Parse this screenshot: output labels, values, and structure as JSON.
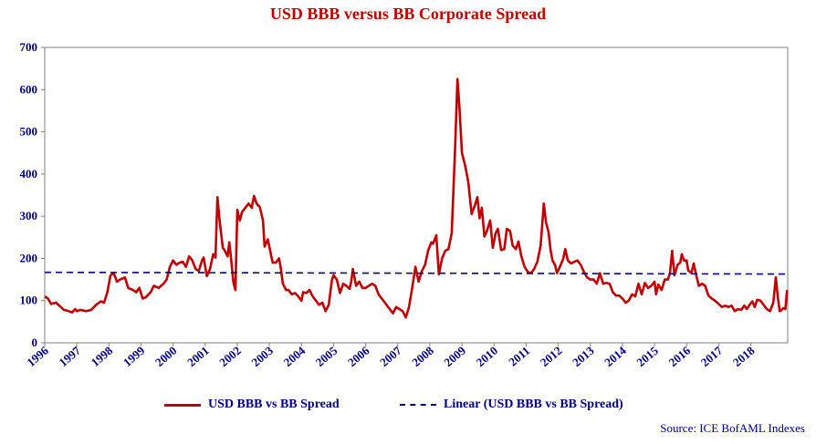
{
  "chart_data": {
    "type": "line",
    "title": "USD BBB versus BB Corporate Spread",
    "xlabel": "",
    "ylabel": "",
    "ylim": [
      0,
      700
    ],
    "xlim": [
      1996.0,
      2018.5
    ],
    "y_ticks": [
      "0",
      "100",
      "200",
      "300",
      "400",
      "500",
      "600",
      "700"
    ],
    "x_ticks": [
      "1996",
      "1997",
      "1998",
      "1999",
      "2000",
      "2001",
      "2002",
      "2003",
      "2004",
      "2005",
      "2006",
      "2007",
      "2008",
      "2009",
      "2010",
      "2011",
      "2012",
      "2013",
      "2014",
      "2015",
      "2016",
      "2017",
      "2018"
    ],
    "grid": false,
    "legend_position": "bottom",
    "series": [
      {
        "name": "USD BBB vs BB Spread",
        "color": "#c00000",
        "style": "solid",
        "points": [
          [
            1996.0,
            110
          ],
          [
            1996.1,
            105
          ],
          [
            1996.2,
            92
          ],
          [
            1996.35,
            95
          ],
          [
            1996.5,
            85
          ],
          [
            1996.6,
            78
          ],
          [
            1996.75,
            75
          ],
          [
            1996.85,
            72
          ],
          [
            1996.95,
            80
          ],
          [
            1997.0,
            75
          ],
          [
            1997.1,
            78
          ],
          [
            1997.3,
            75
          ],
          [
            1997.45,
            78
          ],
          [
            1997.6,
            90
          ],
          [
            1997.75,
            98
          ],
          [
            1997.85,
            95
          ],
          [
            1997.95,
            120
          ],
          [
            1998.05,
            160
          ],
          [
            1998.15,
            165
          ],
          [
            1998.25,
            145
          ],
          [
            1998.35,
            150
          ],
          [
            1998.5,
            155
          ],
          [
            1998.6,
            130
          ],
          [
            1998.75,
            125
          ],
          [
            1998.85,
            120
          ],
          [
            1998.95,
            130
          ],
          [
            1999.05,
            105
          ],
          [
            1999.15,
            108
          ],
          [
            1999.3,
            120
          ],
          [
            1999.4,
            135
          ],
          [
            1999.55,
            130
          ],
          [
            1999.7,
            140
          ],
          [
            1999.8,
            150
          ],
          [
            1999.9,
            180
          ],
          [
            2000.0,
            195
          ],
          [
            2000.1,
            185
          ],
          [
            2000.2,
            190
          ],
          [
            2000.3,
            192
          ],
          [
            2000.4,
            180
          ],
          [
            2000.5,
            205
          ],
          [
            2000.6,
            195
          ],
          [
            2000.7,
            175
          ],
          [
            2000.8,
            170
          ],
          [
            2000.9,
            195
          ],
          [
            2000.95,
            202
          ],
          [
            2001.05,
            158
          ],
          [
            2001.15,
            175
          ],
          [
            2001.25,
            210
          ],
          [
            2001.32,
            202
          ],
          [
            2001.38,
            345
          ],
          [
            2001.45,
            290
          ],
          [
            2001.55,
            225
          ],
          [
            2001.6,
            220
          ],
          [
            2001.7,
            205
          ],
          [
            2001.75,
            238
          ],
          [
            2001.8,
            205
          ],
          [
            2001.88,
            142
          ],
          [
            2001.94,
            125
          ],
          [
            2002.0,
            315
          ],
          [
            2002.08,
            290
          ],
          [
            2002.15,
            310
          ],
          [
            2002.25,
            320
          ],
          [
            2002.35,
            330
          ],
          [
            2002.45,
            320
          ],
          [
            2002.52,
            348
          ],
          [
            2002.6,
            330
          ],
          [
            2002.7,
            322
          ],
          [
            2002.8,
            290
          ],
          [
            2002.85,
            228
          ],
          [
            2002.95,
            245
          ],
          [
            2003.02,
            220
          ],
          [
            2003.1,
            190
          ],
          [
            2003.2,
            190
          ],
          [
            2003.3,
            200
          ],
          [
            2003.35,
            180
          ],
          [
            2003.42,
            140
          ],
          [
            2003.52,
            125
          ],
          [
            2003.6,
            125
          ],
          [
            2003.7,
            115
          ],
          [
            2003.8,
            118
          ],
          [
            2003.9,
            110
          ],
          [
            2004.0,
            100
          ],
          [
            2004.05,
            120
          ],
          [
            2004.15,
            118
          ],
          [
            2004.25,
            125
          ],
          [
            2004.35,
            110
          ],
          [
            2004.45,
            100
          ],
          [
            2004.55,
            90
          ],
          [
            2004.65,
            95
          ],
          [
            2004.75,
            75
          ],
          [
            2004.85,
            90
          ],
          [
            2004.95,
            150
          ],
          [
            2005.0,
            160
          ],
          [
            2005.1,
            150
          ],
          [
            2005.2,
            118
          ],
          [
            2005.3,
            140
          ],
          [
            2005.4,
            135
          ],
          [
            2005.5,
            128
          ],
          [
            2005.55,
            145
          ],
          [
            2005.6,
            175
          ],
          [
            2005.7,
            135
          ],
          [
            2005.8,
            145
          ],
          [
            2005.9,
            130
          ],
          [
            2006.0,
            130
          ],
          [
            2006.1,
            135
          ],
          [
            2006.2,
            140
          ],
          [
            2006.3,
            135
          ],
          [
            2006.4,
            115
          ],
          [
            2006.5,
            105
          ],
          [
            2006.6,
            95
          ],
          [
            2006.7,
            85
          ],
          [
            2006.8,
            75
          ],
          [
            2006.85,
            70
          ],
          [
            2006.95,
            85
          ],
          [
            2007.05,
            80
          ],
          [
            2007.15,
            75
          ],
          [
            2007.25,
            60
          ],
          [
            2007.35,
            85
          ],
          [
            2007.45,
            130
          ],
          [
            2007.55,
            180
          ],
          [
            2007.65,
            145
          ],
          [
            2007.75,
            170
          ],
          [
            2007.85,
            185
          ],
          [
            2007.95,
            220
          ],
          [
            2008.05,
            238
          ],
          [
            2008.1,
            235
          ],
          [
            2008.2,
            255
          ],
          [
            2008.28,
            162
          ],
          [
            2008.38,
            200
          ],
          [
            2008.48,
            218
          ],
          [
            2008.58,
            222
          ],
          [
            2008.68,
            260
          ],
          [
            2008.78,
            450
          ],
          [
            2008.86,
            625
          ],
          [
            2008.92,
            560
          ],
          [
            2009.0,
            450
          ],
          [
            2009.1,
            420
          ],
          [
            2009.2,
            380
          ],
          [
            2009.3,
            305
          ],
          [
            2009.4,
            325
          ],
          [
            2009.48,
            345
          ],
          [
            2009.55,
            295
          ],
          [
            2009.62,
            320
          ],
          [
            2009.7,
            252
          ],
          [
            2009.78,
            265
          ],
          [
            2009.88,
            290
          ],
          [
            2009.96,
            225
          ],
          [
            2010.05,
            260
          ],
          [
            2010.12,
            270
          ],
          [
            2010.22,
            220
          ],
          [
            2010.32,
            222
          ],
          [
            2010.4,
            270
          ],
          [
            2010.5,
            265
          ],
          [
            2010.58,
            230
          ],
          [
            2010.68,
            222
          ],
          [
            2010.76,
            240
          ],
          [
            2010.85,
            205
          ],
          [
            2010.95,
            180
          ],
          [
            2011.05,
            168
          ],
          [
            2011.15,
            165
          ],
          [
            2011.25,
            175
          ],
          [
            2011.35,
            192
          ],
          [
            2011.45,
            230
          ],
          [
            2011.55,
            330
          ],
          [
            2011.62,
            285
          ],
          [
            2011.7,
            262
          ],
          [
            2011.76,
            220
          ],
          [
            2011.82,
            195
          ],
          [
            2011.9,
            185
          ],
          [
            2011.96,
            165
          ],
          [
            2012.05,
            180
          ],
          [
            2012.15,
            198
          ],
          [
            2012.22,
            222
          ],
          [
            2012.3,
            195
          ],
          [
            2012.4,
            188
          ],
          [
            2012.5,
            192
          ],
          [
            2012.6,
            195
          ],
          [
            2012.7,
            185
          ],
          [
            2012.8,
            168
          ],
          [
            2012.9,
            155
          ],
          [
            2013.0,
            150
          ],
          [
            2013.1,
            150
          ],
          [
            2013.2,
            140
          ],
          [
            2013.3,
            165
          ],
          [
            2013.4,
            140
          ],
          [
            2013.5,
            142
          ],
          [
            2013.6,
            140
          ],
          [
            2013.7,
            120
          ],
          [
            2013.8,
            112
          ],
          [
            2013.9,
            112
          ],
          [
            2014.0,
            105
          ],
          [
            2014.1,
            95
          ],
          [
            2014.2,
            100
          ],
          [
            2014.3,
            115
          ],
          [
            2014.4,
            110
          ],
          [
            2014.5,
            140
          ],
          [
            2014.6,
            115
          ],
          [
            2014.7,
            142
          ],
          [
            2014.8,
            130
          ],
          [
            2014.9,
            135
          ],
          [
            2015.0,
            145
          ],
          [
            2015.05,
            115
          ],
          [
            2015.12,
            138
          ],
          [
            2015.22,
            125
          ],
          [
            2015.32,
            150
          ],
          [
            2015.42,
            150
          ],
          [
            2015.48,
            165
          ],
          [
            2015.55,
            218
          ],
          [
            2015.62,
            160
          ],
          [
            2015.72,
            185
          ],
          [
            2015.8,
            190
          ],
          [
            2015.85,
            210
          ],
          [
            2015.92,
            195
          ],
          [
            2016.0,
            195
          ],
          [
            2016.05,
            172
          ],
          [
            2016.15,
            165
          ],
          [
            2016.22,
            188
          ],
          [
            2016.3,
            160
          ],
          [
            2016.38,
            135
          ],
          [
            2016.48,
            140
          ],
          [
            2016.58,
            135
          ],
          [
            2016.68,
            112
          ],
          [
            2016.78,
            105
          ],
          [
            2016.88,
            100
          ],
          [
            2017.0,
            92
          ],
          [
            2017.1,
            85
          ],
          [
            2017.2,
            88
          ],
          [
            2017.3,
            85
          ],
          [
            2017.4,
            88
          ],
          [
            2017.5,
            75
          ],
          [
            2017.6,
            80
          ],
          [
            2017.7,
            78
          ],
          [
            2017.8,
            88
          ],
          [
            2017.88,
            80
          ],
          [
            2017.96,
            90
          ],
          [
            2018.05,
            98
          ],
          [
            2018.12,
            85
          ],
          [
            2018.2,
            102
          ],
          [
            2018.3,
            100
          ],
          [
            2018.4,
            90
          ],
          [
            2018.5,
            80
          ],
          [
            2018.6,
            75
          ],
          [
            2018.7,
            95
          ],
          [
            2018.78,
            155
          ],
          [
            2018.84,
            110
          ],
          [
            2018.9,
            75
          ],
          [
            2018.96,
            78
          ],
          [
            2019.02,
            82
          ],
          [
            2019.08,
            80
          ],
          [
            2019.13,
            125
          ]
        ]
      },
      {
        "name": "Linear (USD BBB vs BB Spread)",
        "color": "#000080",
        "style": "dashed",
        "points": [
          [
            1996.0,
            167
          ],
          [
            2019.13,
            163
          ]
        ]
      }
    ],
    "source": "Source: ICE BofAML Indexes"
  }
}
